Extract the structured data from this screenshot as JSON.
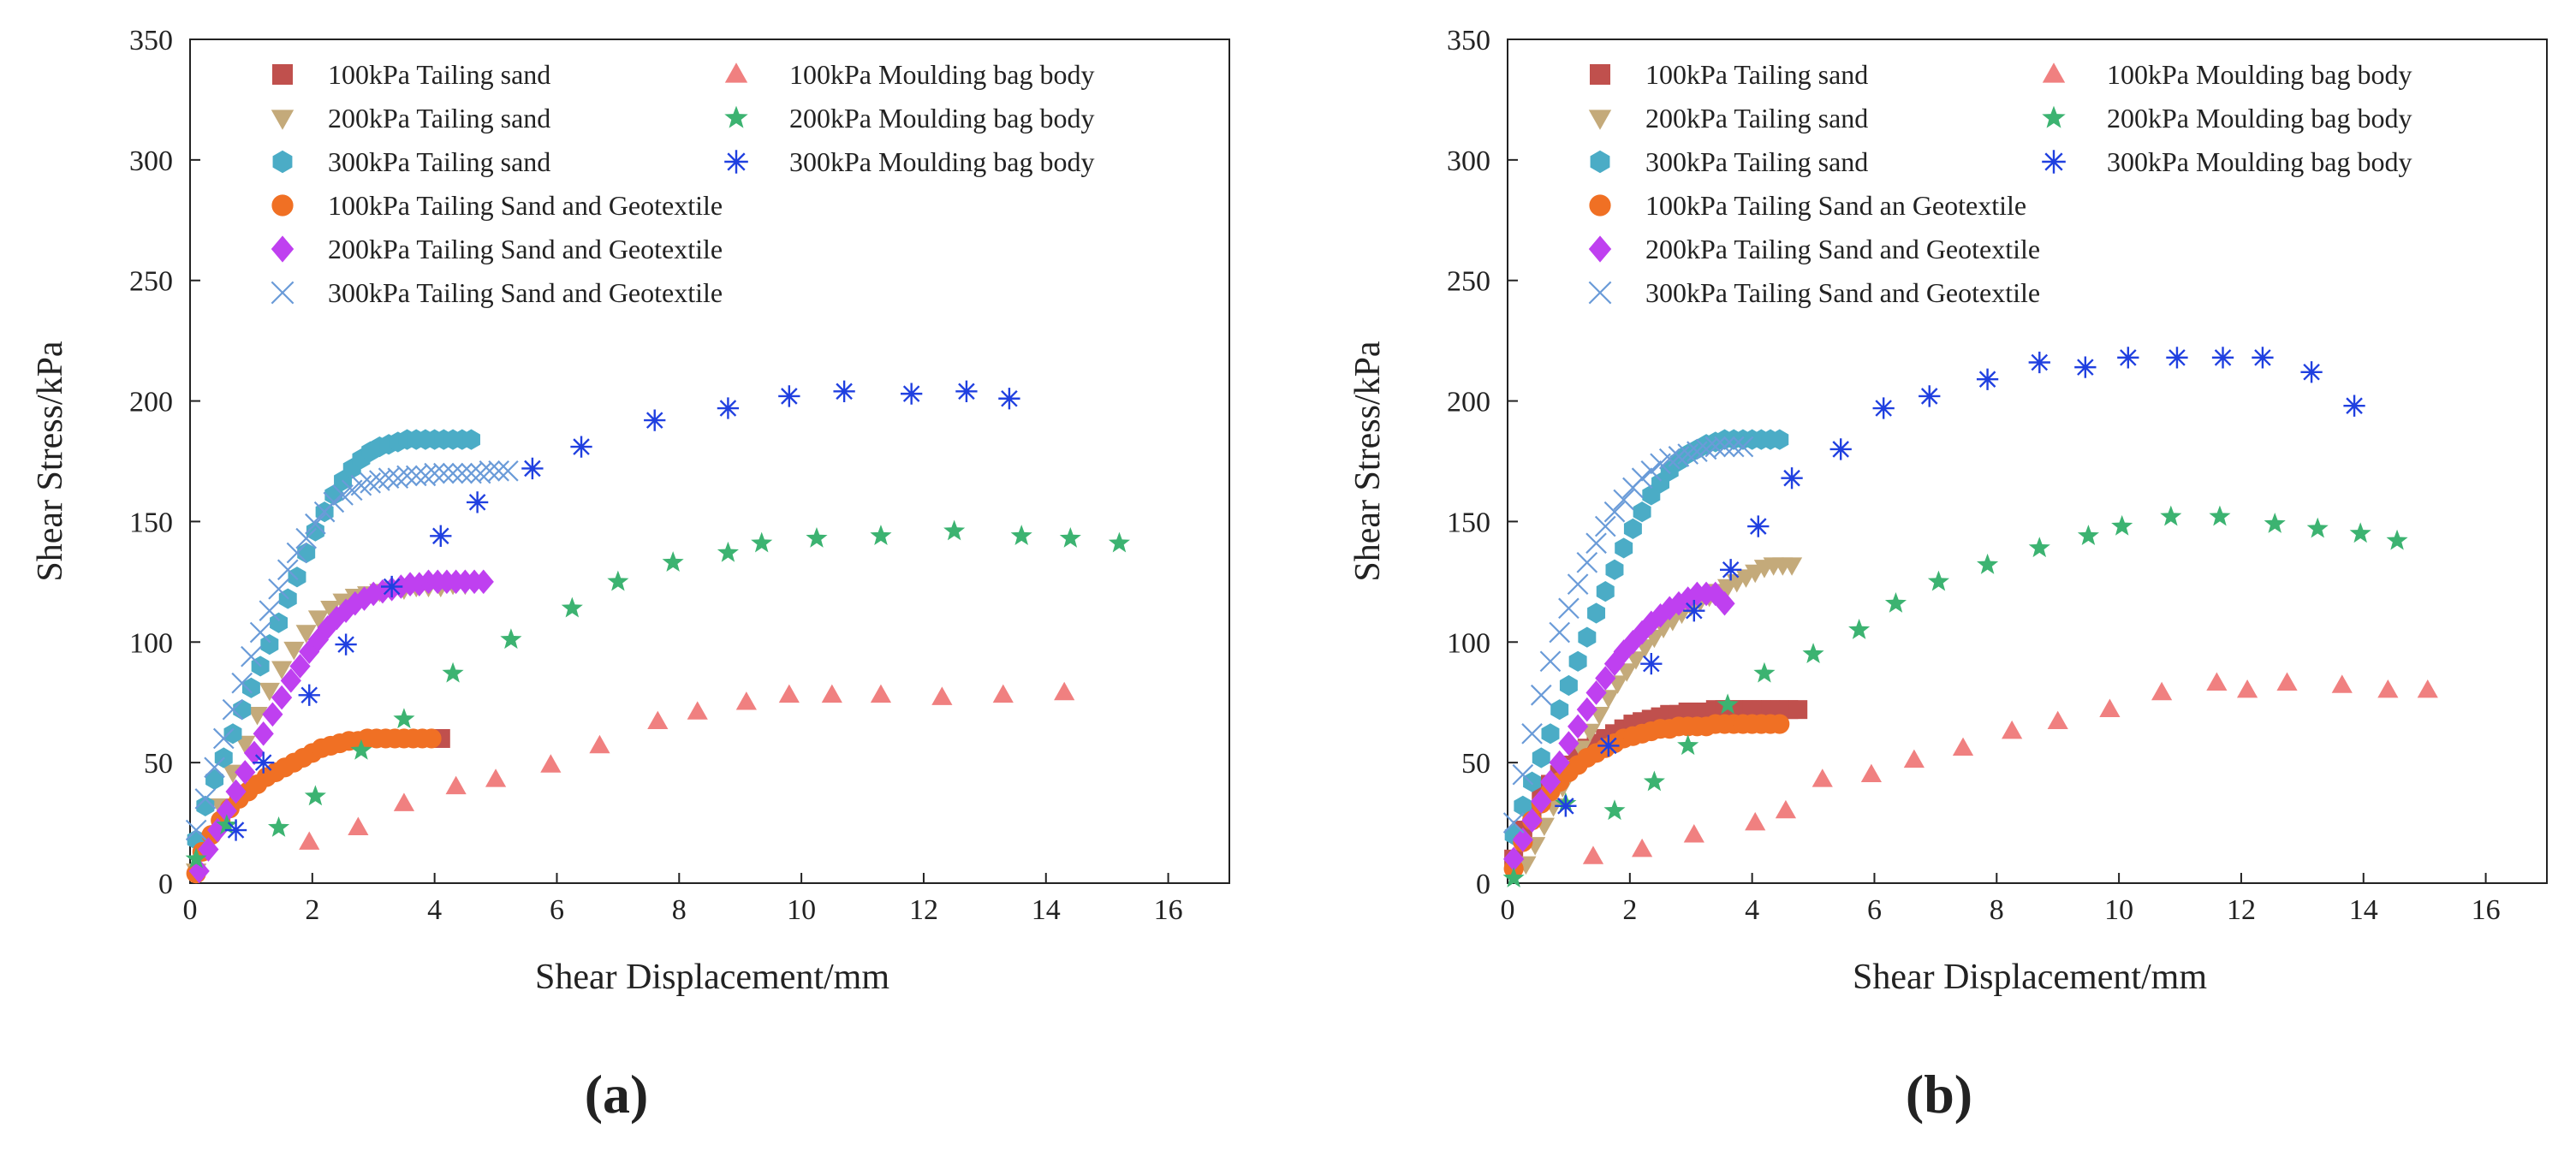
{
  "colors": {
    "ts100": "#c0504d",
    "ts200": "#c4aa7a",
    "ts300": "#4bacc6",
    "tsg100": "#f07024",
    "tsg200": "#bf40f0",
    "tsg300": "#6a9bd8",
    "mb100": "#f08080",
    "mb200": "#3cb371",
    "mb300": "#2040e0"
  },
  "chart_data": [
    {
      "type": "scatter",
      "panel_label": "(a)",
      "xlabel": "Shear Displacement/mm",
      "ylabel": "Shear Stress/kPa",
      "xlim": [
        0,
        17
      ],
      "ylim": [
        0,
        350
      ],
      "xticks": [
        0,
        2,
        4,
        6,
        8,
        10,
        12,
        14,
        16
      ],
      "yticks": [
        0,
        50,
        100,
        150,
        200,
        250,
        300,
        350
      ],
      "legend_position": "top-left",
      "series": [
        {
          "key": "ts100",
          "name": "100kPa Tailing sand",
          "marker": "square",
          "color": "#c0504d",
          "x": [
            4.1
          ],
          "y": [
            60
          ]
        },
        {
          "key": "ts200",
          "name": "200kPa Tailing sand",
          "marker": "triangle-down",
          "color": "#c4aa7a",
          "x": [
            0.1,
            0.3,
            0.5,
            0.7,
            0.9,
            1.1,
            1.3,
            1.5,
            1.7,
            1.9,
            2.1,
            2.3,
            2.5,
            2.7,
            2.9,
            3.1,
            3.3,
            3.5,
            3.7,
            3.9,
            4.1,
            4.3,
            4.5
          ],
          "y": [
            5,
            18,
            32,
            46,
            58,
            70,
            80,
            89,
            97,
            104,
            110,
            114,
            117,
            119,
            120,
            121,
            122,
            122,
            123,
            123,
            123,
            124,
            124
          ]
        },
        {
          "key": "ts300",
          "name": "300kPa Tailing sand",
          "marker": "hexagon",
          "color": "#4bacc6",
          "x": [
            0.1,
            0.25,
            0.4,
            0.55,
            0.7,
            0.85,
            1.0,
            1.15,
            1.3,
            1.45,
            1.6,
            1.75,
            1.9,
            2.05,
            2.2,
            2.35,
            2.5,
            2.65,
            2.8,
            2.95,
            3.1,
            3.25,
            3.4,
            3.55,
            3.7,
            3.85,
            4.0,
            4.15,
            4.3,
            4.45,
            4.6
          ],
          "y": [
            18,
            32,
            43,
            52,
            62,
            72,
            81,
            90,
            99,
            108,
            118,
            127,
            137,
            146,
            154,
            161,
            167,
            172,
            176,
            179,
            181,
            182,
            183,
            184,
            184,
            184,
            184,
            184,
            184,
            184,
            184
          ]
        },
        {
          "key": "tsg100",
          "name": "100kPa Tailing Sand and Geotextile",
          "marker": "circle",
          "color": "#f07024",
          "x": [
            0.1,
            0.2,
            0.35,
            0.5,
            0.65,
            0.8,
            0.95,
            1.1,
            1.25,
            1.4,
            1.55,
            1.7,
            1.85,
            2.0,
            2.15,
            2.3,
            2.45,
            2.6,
            2.75,
            2.9,
            3.05,
            3.2,
            3.35,
            3.5,
            3.65,
            3.8,
            3.95
          ],
          "y": [
            4,
            13,
            20,
            26,
            31,
            35,
            38,
            41,
            44,
            46,
            48,
            50,
            52,
            54,
            56,
            57,
            58,
            59,
            59,
            60,
            60,
            60,
            60,
            60,
            60,
            60,
            60
          ]
        },
        {
          "key": "tsg200",
          "name": "200kPa Tailing Sand and Geotextile",
          "marker": "diamond",
          "color": "#bf40f0",
          "x": [
            0.15,
            0.3,
            0.45,
            0.6,
            0.75,
            0.9,
            1.05,
            1.2,
            1.35,
            1.5,
            1.65,
            1.8,
            1.95,
            2.1,
            2.25,
            2.4,
            2.55,
            2.7,
            2.85,
            3.0,
            3.15,
            3.3,
            3.45,
            3.6,
            3.75,
            3.9,
            4.05,
            4.2,
            4.35,
            4.5,
            4.65,
            4.8
          ],
          "y": [
            5,
            14,
            22,
            30,
            38,
            46,
            54,
            62,
            70,
            77,
            84,
            90,
            96,
            101,
            106,
            110,
            113,
            116,
            118,
            120,
            121,
            122,
            123,
            124,
            124,
            125,
            125,
            125,
            125,
            125,
            125,
            125
          ]
        },
        {
          "key": "tsg300",
          "name": "300kPa Tailing Sand and Geotextile",
          "marker": "x",
          "color": "#6a9bd8",
          "x": [
            0.1,
            0.25,
            0.4,
            0.55,
            0.7,
            0.85,
            1.0,
            1.15,
            1.3,
            1.45,
            1.6,
            1.75,
            1.9,
            2.05,
            2.2,
            2.35,
            2.5,
            2.65,
            2.8,
            2.95,
            3.1,
            3.25,
            3.4,
            3.55,
            3.7,
            3.85,
            4.0,
            4.15,
            4.3,
            4.45,
            4.6,
            4.75,
            4.9,
            5.05,
            5.2
          ],
          "y": [
            22,
            35,
            48,
            60,
            72,
            83,
            94,
            104,
            113,
            122,
            130,
            137,
            143,
            149,
            154,
            158,
            161,
            163,
            165,
            166,
            167,
            168,
            168,
            169,
            169,
            169,
            170,
            170,
            170,
            170,
            170,
            170,
            171,
            171,
            171
          ]
        },
        {
          "key": "mb100",
          "name": "100kPa Moulding bag body",
          "marker": "triangle-up",
          "color": "#f08080",
          "x": [
            1.95,
            2.75,
            3.5,
            4.35,
            5.0,
            5.9,
            6.7,
            7.65,
            8.3,
            9.1,
            9.8,
            10.5,
            11.3,
            12.3,
            13.3,
            14.3
          ],
          "y": [
            17,
            23,
            33,
            40,
            43,
            49,
            57,
            67,
            71,
            75,
            78,
            78,
            78,
            77,
            78,
            79
          ]
        },
        {
          "key": "mb200",
          "name": "200kPa Moulding bag body",
          "marker": "star",
          "color": "#3cb371",
          "x": [
            0.1,
            0.6,
            1.45,
            2.05,
            2.8,
            3.5,
            4.3,
            5.25,
            6.25,
            7.0,
            7.9,
            8.8,
            9.35,
            10.25,
            11.3,
            12.5,
            13.6,
            14.4,
            15.2
          ],
          "y": [
            10,
            24,
            23,
            36,
            55,
            68,
            87,
            101,
            114,
            125,
            133,
            137,
            141,
            143,
            144,
            146,
            144,
            143,
            141
          ]
        },
        {
          "key": "mb300",
          "name": "300kPa Moulding bag body",
          "marker": "asterisk",
          "color": "#2040e0",
          "x": [
            0.75,
            1.2,
            1.95,
            2.55,
            3.3,
            4.1,
            4.7,
            5.6,
            6.4,
            7.6,
            8.8,
            9.8,
            10.7,
            11.8,
            12.7,
            13.4
          ],
          "y": [
            22,
            50,
            78,
            99,
            123,
            144,
            158,
            172,
            181,
            192,
            197,
            202,
            204,
            203,
            204,
            201
          ]
        }
      ]
    },
    {
      "type": "scatter",
      "panel_label": "(b)",
      "xlabel": "Shear Displacement/mm",
      "ylabel": "Shear Stress/kPa",
      "xlim": [
        0,
        17
      ],
      "ylim": [
        0,
        350
      ],
      "xticks": [
        0,
        2,
        4,
        6,
        8,
        10,
        12,
        14,
        16
      ],
      "yticks": [
        0,
        50,
        100,
        150,
        200,
        250,
        300,
        350
      ],
      "legend_position": "top-left",
      "series": [
        {
          "key": "ts100",
          "name": "100kPa Tailing sand",
          "marker": "square",
          "color": "#c0504d",
          "x": [
            0.1,
            0.25,
            0.4,
            0.55,
            0.7,
            0.85,
            1.0,
            1.15,
            1.3,
            1.45,
            1.6,
            1.75,
            1.9,
            2.05,
            2.2,
            2.35,
            2.5,
            2.65,
            2.8,
            2.95,
            3.1,
            3.25,
            3.4,
            3.55,
            3.7,
            3.85,
            4.0,
            4.15,
            4.3,
            4.45,
            4.6,
            4.75
          ],
          "y": [
            10,
            22,
            30,
            36,
            41,
            45,
            49,
            53,
            56,
            58,
            60,
            62,
            64,
            66,
            67,
            68,
            69,
            70,
            70,
            71,
            71,
            71,
            72,
            72,
            72,
            72,
            72,
            72,
            72,
            72,
            72,
            72
          ]
        },
        {
          "key": "ts200",
          "name": "200kPa Tailing sand",
          "marker": "triangle-down",
          "color": "#c4aa7a",
          "x": [
            0.3,
            0.45,
            0.6,
            0.75,
            0.9,
            1.05,
            1.2,
            1.35,
            1.5,
            1.65,
            1.8,
            1.95,
            2.1,
            2.25,
            2.4,
            2.55,
            2.7,
            2.85,
            3.0,
            3.15,
            3.3,
            3.45,
            3.6,
            3.75,
            3.9,
            4.05,
            4.2,
            4.35,
            4.5,
            4.65
          ],
          "y": [
            8,
            16,
            24,
            32,
            40,
            48,
            56,
            63,
            70,
            77,
            83,
            88,
            93,
            98,
            102,
            106,
            109,
            112,
            115,
            117,
            119,
            121,
            123,
            125,
            127,
            129,
            131,
            132,
            132,
            132
          ]
        },
        {
          "key": "ts300",
          "name": "300kPa Tailing sand",
          "marker": "hexagon",
          "color": "#4bacc6",
          "x": [
            0.1,
            0.25,
            0.4,
            0.55,
            0.7,
            0.85,
            1.0,
            1.15,
            1.3,
            1.45,
            1.6,
            1.75,
            1.9,
            2.05,
            2.2,
            2.35,
            2.5,
            2.65,
            2.8,
            2.95,
            3.1,
            3.25,
            3.4,
            3.55,
            3.7,
            3.85,
            4.0,
            4.15,
            4.3,
            4.45
          ],
          "y": [
            20,
            32,
            42,
            52,
            62,
            72,
            82,
            92,
            102,
            112,
            121,
            130,
            139,
            147,
            154,
            161,
            166,
            171,
            175,
            178,
            180,
            182,
            183,
            184,
            184,
            184,
            184,
            184,
            184,
            184
          ]
        },
        {
          "key": "tsg100",
          "name": "100kPa Tailing Sand an Geotextile",
          "marker": "circle",
          "color": "#f07024",
          "x": [
            0.1,
            0.25,
            0.4,
            0.55,
            0.7,
            0.85,
            1.0,
            1.15,
            1.3,
            1.45,
            1.6,
            1.75,
            1.9,
            2.05,
            2.2,
            2.35,
            2.5,
            2.65,
            2.8,
            2.95,
            3.1,
            3.25,
            3.4,
            3.55,
            3.7,
            3.85,
            4.0,
            4.15,
            4.3,
            4.45
          ],
          "y": [
            6,
            17,
            26,
            33,
            38,
            42,
            46,
            49,
            52,
            54,
            56,
            58,
            60,
            61,
            62,
            63,
            64,
            64,
            65,
            65,
            65,
            65,
            66,
            66,
            66,
            66,
            66,
            66,
            66,
            66
          ]
        },
        {
          "key": "tsg200",
          "name": "200kPa Tailing Sand and Geotextile",
          "marker": "diamond",
          "color": "#bf40f0",
          "x": [
            0.1,
            0.25,
            0.4,
            0.55,
            0.7,
            0.85,
            1.0,
            1.15,
            1.3,
            1.45,
            1.6,
            1.75,
            1.9,
            2.05,
            2.2,
            2.35,
            2.5,
            2.65,
            2.8,
            2.95,
            3.1,
            3.25,
            3.4,
            3.55
          ],
          "y": [
            10,
            18,
            26,
            34,
            42,
            50,
            58,
            65,
            72,
            79,
            85,
            91,
            96,
            100,
            104,
            108,
            111,
            114,
            116,
            118,
            120,
            120,
            120,
            116
          ]
        },
        {
          "key": "tsg300",
          "name": "300kPa Tailing Sand and Geotextile",
          "marker": "x",
          "color": "#6a9bd8",
          "x": [
            0.1,
            0.25,
            0.4,
            0.55,
            0.7,
            0.85,
            1.0,
            1.15,
            1.3,
            1.45,
            1.6,
            1.75,
            1.9,
            2.05,
            2.2,
            2.35,
            2.5,
            2.65,
            2.8,
            2.95,
            3.1,
            3.25,
            3.4,
            3.55,
            3.7,
            3.85
          ],
          "y": [
            25,
            45,
            62,
            78,
            92,
            104,
            114,
            124,
            133,
            141,
            148,
            154,
            159,
            164,
            168,
            171,
            174,
            176,
            177,
            178,
            179,
            180,
            181,
            181,
            181,
            181
          ]
        },
        {
          "key": "mb100",
          "name": "100kPa Moulding bag body",
          "marker": "triangle-up",
          "color": "#f08080",
          "x": [
            1.4,
            2.2,
            3.05,
            4.05,
            4.55,
            5.15,
            5.95,
            6.65,
            7.45,
            8.25,
            9.0,
            9.85,
            10.7,
            11.6,
            12.1,
            12.75,
            13.65,
            14.4,
            15.05
          ],
          "y": [
            11,
            14,
            20,
            25,
            30,
            43,
            45,
            51,
            56,
            63,
            67,
            72,
            79,
            83,
            80,
            83,
            82,
            80,
            80
          ]
        },
        {
          "key": "mb200",
          "name": "200kPa Moulding bag body",
          "marker": "star",
          "color": "#3cb371",
          "x": [
            0.1,
            0.95,
            1.75,
            2.4,
            2.95,
            3.6,
            4.2,
            5.0,
            5.75,
            6.35,
            7.05,
            7.85,
            8.7,
            9.5,
            10.05,
            10.85,
            11.65,
            12.55,
            13.25,
            13.95,
            14.55
          ],
          "y": [
            2,
            33,
            30,
            42,
            57,
            74,
            87,
            95,
            105,
            116,
            125,
            132,
            139,
            144,
            148,
            152,
            152,
            149,
            147,
            145,
            142
          ]
        },
        {
          "key": "mb300",
          "name": "300kPa Moulding bag body",
          "marker": "asterisk",
          "color": "#2040e0",
          "x": [
            0.95,
            1.65,
            2.35,
            3.05,
            3.65,
            4.1,
            4.65,
            5.45,
            6.15,
            6.9,
            7.85,
            8.7,
            9.45,
            10.15,
            10.95,
            11.7,
            12.35,
            13.15,
            13.85
          ],
          "y": [
            32,
            57,
            91,
            113,
            130,
            148,
            168,
            180,
            197,
            202,
            209,
            216,
            214,
            218,
            218,
            218,
            218,
            212,
            198
          ]
        }
      ]
    }
  ]
}
